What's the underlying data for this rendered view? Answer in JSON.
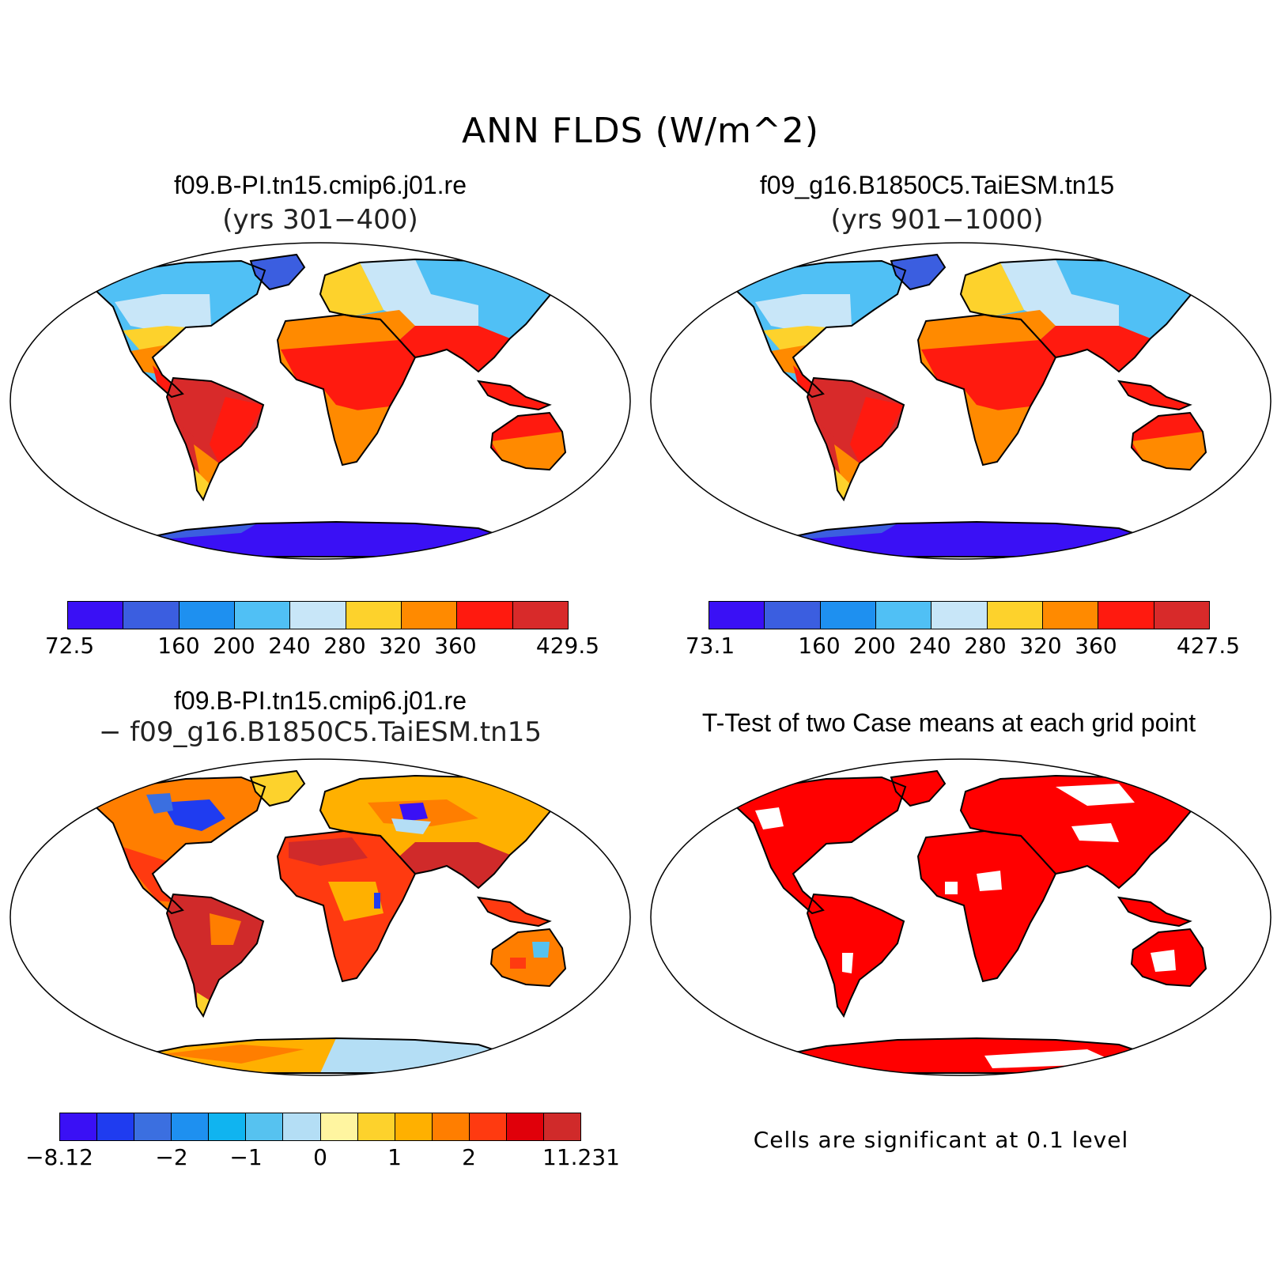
{
  "figure": {
    "title": "ANN FLDS (W/m^2)"
  },
  "panels": {
    "case1": {
      "title": "f09.B-PI.tn15.cmip6.j01.re",
      "subtitle": "(yrs 301−400)",
      "colorbar": {
        "colors": [
          "#3a10f5",
          "#3b5ee0",
          "#1e90f0",
          "#50c0f5",
          "#c8e6f8",
          "#fdd22c",
          "#ff8a00",
          "#ff1a0f",
          "#d82a2a"
        ],
        "labels": [
          "72.5",
          "160",
          "200",
          "240",
          "280",
          "320",
          "360",
          "429.5"
        ]
      }
    },
    "case2": {
      "title": "f09_g16.B1850C5.TaiESM.tn15",
      "subtitle": "(yrs 901−1000)",
      "colorbar": {
        "colors": [
          "#3a10f5",
          "#3b5ee0",
          "#1e90f0",
          "#50c0f5",
          "#c8e6f8",
          "#fdd22c",
          "#ff8a00",
          "#ff1a0f",
          "#d82a2a"
        ],
        "labels": [
          "73.1",
          "160",
          "200",
          "240",
          "280",
          "320",
          "360",
          "427.5"
        ]
      }
    },
    "diff": {
      "title": "f09.B-PI.tn15.cmip6.j01.re",
      "subtitle": "− f09_g16.B1850C5.TaiESM.tn15",
      "colorbar": {
        "colors": [
          "#3a10f5",
          "#1f3cf0",
          "#3b6fe0",
          "#1e90f0",
          "#10b4f0",
          "#56c2f0",
          "#b4def5",
          "#fff5a0",
          "#fdd22c",
          "#ffb000",
          "#ff7e00",
          "#ff3a10",
          "#e0000a",
          "#d02a2a"
        ],
        "labels": [
          "−8.12",
          "−2",
          "−1",
          "0",
          "1",
          "2",
          "11.231"
        ]
      }
    },
    "ttest": {
      "title": "T-Test of two Case means at each grid point",
      "note": "Cells are significant at 0.1 level",
      "significant_color": "#ff0000"
    }
  }
}
